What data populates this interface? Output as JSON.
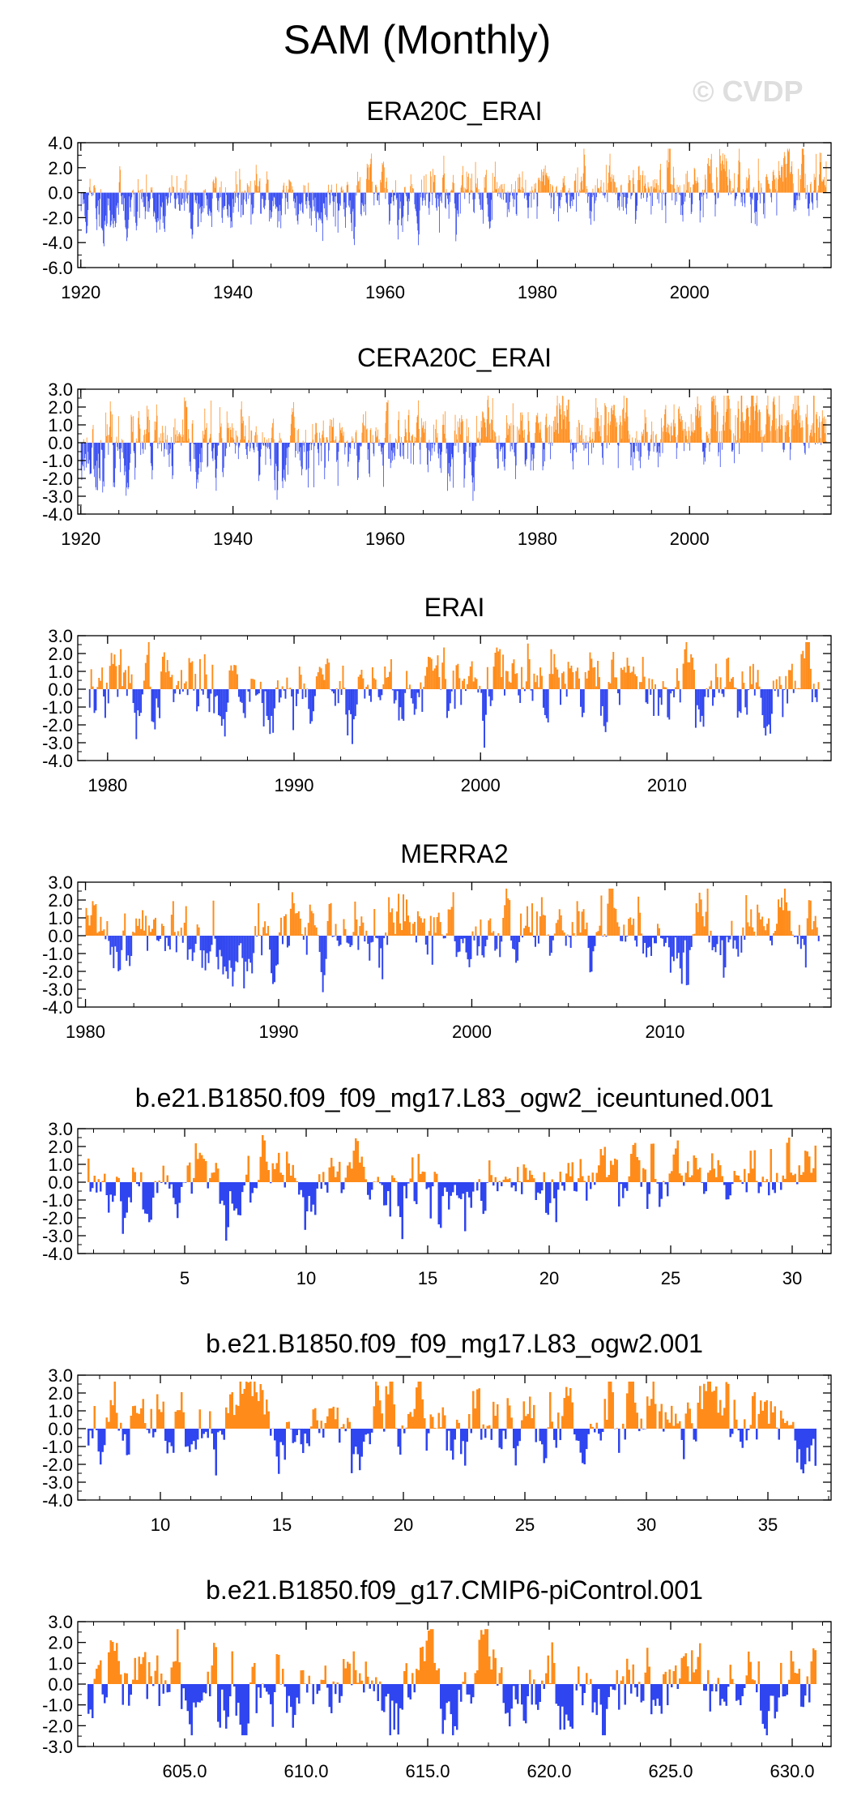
{
  "title": "SAM (Monthly)",
  "watermark": "© CVDP",
  "colors": {
    "positive": "#ff8c1a",
    "negative": "#2f45f0",
    "axis": "#000000"
  },
  "chart_data": [
    {
      "type": "bar",
      "title": "ERA20C_ERAI",
      "x_range": [
        1919.6,
        2018.6
      ],
      "y_range": [
        -6.0,
        4.0
      ],
      "yticks": [
        4.0,
        2.0,
        0.0,
        -2.0,
        -4.0,
        -6.0
      ],
      "ytick_labels": [
        "4.0",
        "2.0",
        "0.0",
        "-2.0",
        "-4.0",
        "-6.0"
      ],
      "xticks": [
        1920,
        1940,
        1960,
        1980,
        2000
      ],
      "xtick_labels": [
        "1920",
        "1940",
        "1960",
        "1980",
        "2000"
      ],
      "series_start": 1920.0,
      "series_end": 2018.0,
      "bias_start": -1.2,
      "bias_end": 0.9,
      "amplitude": 1.3,
      "seed": 11
    },
    {
      "type": "bar",
      "title": "CERA20C_ERAI",
      "x_range": [
        1919.6,
        2018.6
      ],
      "y_range": [
        -4.0,
        3.0
      ],
      "yticks": [
        3.0,
        2.0,
        1.0,
        0.0,
        -1.0,
        -2.0,
        -3.0,
        -4.0
      ],
      "ytick_labels": [
        "3.0",
        "2.0",
        "1.0",
        "0.0",
        "-1.0",
        "-2.0",
        "-3.0",
        "-4.0"
      ],
      "xticks": [
        1920,
        1940,
        1960,
        1980,
        2000
      ],
      "xtick_labels": [
        "1920",
        "1940",
        "1960",
        "1980",
        "2000"
      ],
      "series_start": 1920.0,
      "series_end": 2018.0,
      "bias_start": -0.6,
      "bias_end": 0.8,
      "amplitude": 1.1,
      "seed": 23
    },
    {
      "type": "bar",
      "title": "ERAI",
      "x_range": [
        1978.4,
        2018.8
      ],
      "y_range": [
        -4.0,
        3.0
      ],
      "yticks": [
        3.0,
        2.0,
        1.0,
        0.0,
        -1.0,
        -2.0,
        -3.0,
        -4.0
      ],
      "ytick_labels": [
        "3.0",
        "2.0",
        "1.0",
        "0.0",
        "-1.0",
        "-2.0",
        "-3.0",
        "-4.0"
      ],
      "xticks": [
        1980,
        1990,
        2000,
        2010
      ],
      "xtick_labels": [
        "1980",
        "1990",
        "2000",
        "2010"
      ],
      "series_start": 1979.0,
      "series_end": 2018.2,
      "bias_start": 0.0,
      "bias_end": 0.2,
      "amplitude": 1.2,
      "seed": 37
    },
    {
      "type": "bar",
      "title": "MERRA2",
      "x_range": [
        1979.6,
        2018.6
      ],
      "y_range": [
        -4.0,
        3.0
      ],
      "yticks": [
        3.0,
        2.0,
        1.0,
        0.0,
        -1.0,
        -2.0,
        -3.0,
        -4.0
      ],
      "ytick_labels": [
        "3.0",
        "2.0",
        "1.0",
        "0.0",
        "-1.0",
        "-2.0",
        "-3.0",
        "-4.0"
      ],
      "xticks": [
        1980,
        1990,
        2000,
        2010
      ],
      "xtick_labels": [
        "1980",
        "1990",
        "2000",
        "2010"
      ],
      "series_start": 1980.0,
      "series_end": 2018.0,
      "bias_start": 0.0,
      "bias_end": 0.2,
      "amplitude": 1.2,
      "seed": 41
    },
    {
      "type": "bar",
      "title": "b.e21.B1850.f09_f09_mg17.L83_ogw2_iceuntuned.001",
      "x_range": [
        0.6,
        31.6
      ],
      "y_range": [
        -4.0,
        3.0
      ],
      "yticks": [
        3.0,
        2.0,
        1.0,
        0.0,
        -1.0,
        -2.0,
        -3.0,
        -4.0
      ],
      "ytick_labels": [
        "3.0",
        "2.0",
        "1.0",
        "0.0",
        "-1.0",
        "-2.0",
        "-3.0",
        "-4.0"
      ],
      "xticks": [
        5,
        10,
        15,
        20,
        25,
        30
      ],
      "xtick_labels": [
        "5",
        "10",
        "15",
        "20",
        "25",
        "30"
      ],
      "series_start": 1.0,
      "series_end": 31.0,
      "bias_start": 0.0,
      "bias_end": 0.0,
      "amplitude": 1.2,
      "seed": 53
    },
    {
      "type": "bar",
      "title": "b.e21.B1850.f09_f09_mg17.L83_ogw2.001",
      "x_range": [
        6.6,
        37.6
      ],
      "y_range": [
        -4.0,
        3.0
      ],
      "yticks": [
        3.0,
        2.0,
        1.0,
        0.0,
        -1.0,
        -2.0,
        -3.0,
        -4.0
      ],
      "ytick_labels": [
        "3.0",
        "2.0",
        "1.0",
        "0.0",
        "-1.0",
        "-2.0",
        "-3.0",
        "-4.0"
      ],
      "xticks": [
        10,
        15,
        20,
        25,
        30,
        35
      ],
      "xtick_labels": [
        "10",
        "15",
        "20",
        "25",
        "30",
        "35"
      ],
      "series_start": 7.0,
      "series_end": 37.0,
      "bias_start": 0.0,
      "bias_end": 0.0,
      "amplitude": 1.2,
      "seed": 67
    },
    {
      "type": "bar",
      "title": "b.e21.B1850.f09_g17.CMIP6-piControl.001",
      "x_range": [
        600.6,
        631.6
      ],
      "y_range": [
        -3.0,
        3.0
      ],
      "yticks": [
        3.0,
        2.0,
        1.0,
        0.0,
        -1.0,
        -2.0,
        -3.0
      ],
      "ytick_labels": [
        "3.0",
        "2.0",
        "1.0",
        "0.0",
        "-1.0",
        "-2.0",
        "-3.0"
      ],
      "xticks": [
        605.0,
        610.0,
        615.0,
        620.0,
        625.0,
        630.0
      ],
      "xtick_labels": [
        "605.0",
        "610.0",
        "615.0",
        "620.0",
        "625.0",
        "630.0"
      ],
      "series_start": 601.0,
      "series_end": 631.0,
      "bias_start": 0.0,
      "bias_end": 0.0,
      "amplitude": 1.2,
      "seed": 79
    }
  ]
}
